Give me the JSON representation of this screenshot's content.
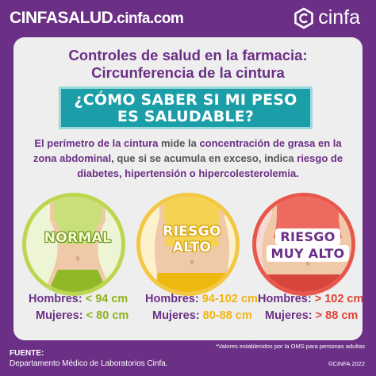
{
  "header": {
    "brand_bold": "CINFASALUD",
    "brand_light": ".cinfa.com",
    "logo_text": "cinfa",
    "logo_icon": "hexagon-logo-icon"
  },
  "title": {
    "line1": "Controles de salud en la farmacia:",
    "line2": "Circunferencia de la cintura"
  },
  "banner": {
    "line1": "¿CÓMO SABER SI MI PESO",
    "line2": "ES SALUDABLE?"
  },
  "description": {
    "p1": "El perímetro de la cintura",
    "p2": " mide la ",
    "p3": "concentración de grasa en la zona abdominal",
    "p4": ", que si se acumula en exceso, indica ",
    "p5": "riesgo de diabetes, hipertensión o hipercolesterolemia."
  },
  "categories": [
    {
      "label": "NORMAL",
      "men_key": "Hombres:",
      "men_value": "< 94 cm",
      "women_key": "Mujeres:",
      "women_value": "< 80 cm",
      "color": "#bcd650"
    },
    {
      "label1": "RIESGO",
      "label2": "ALTO",
      "men_key": "Hombres:",
      "men_value": "94-102 cm",
      "women_key": "Mujeres:",
      "women_value": "80-88 cm",
      "color": "#f3c744"
    },
    {
      "label1": "RIESGO",
      "label2": "MUY ALTO",
      "men_key": "Hombres:",
      "men_value": "> 102 cm",
      "women_key": "Mujeres:",
      "women_value": "> 88 cm",
      "color": "#e7574c"
    }
  ],
  "footer": {
    "note": "*Valores establecidos por la OMS para personas adultas",
    "source_title": "FUENTE:",
    "source_text": "Departamento Médico de Laboratorios Cinfa.",
    "copyright": "©CINFA 2022"
  }
}
